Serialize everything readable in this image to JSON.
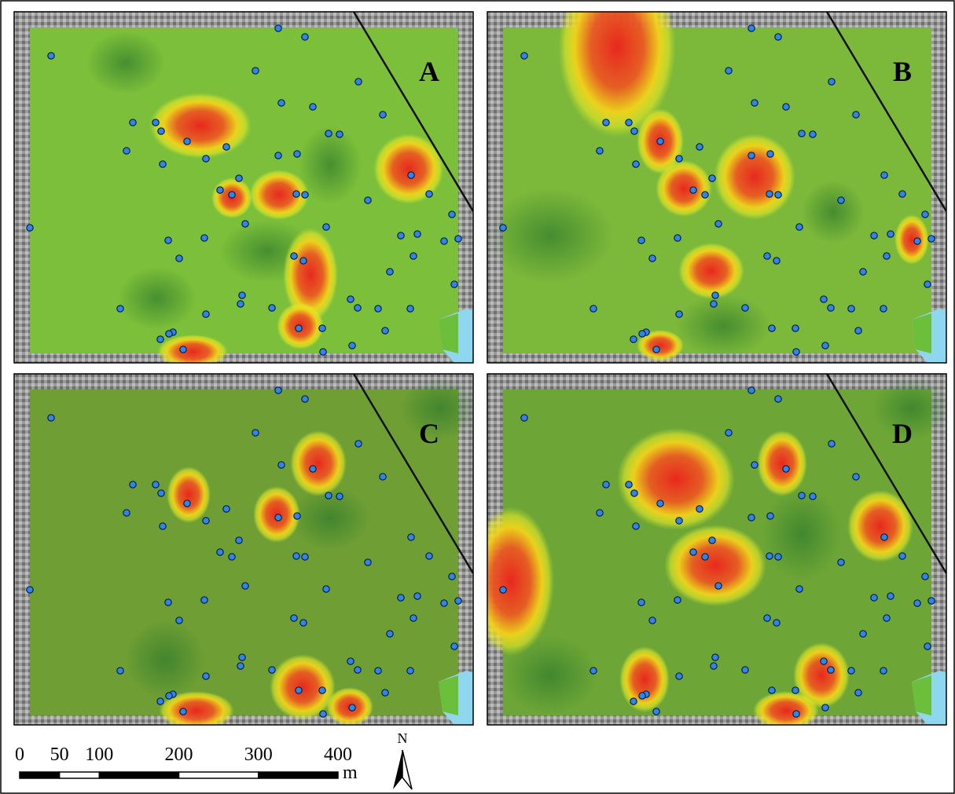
{
  "panels": [
    {
      "label": "A"
    },
    {
      "label": "B"
    },
    {
      "label": "C"
    },
    {
      "label": "D"
    }
  ],
  "scale_bar": {
    "ticks": [
      0,
      50,
      100,
      200,
      300,
      400
    ],
    "unit": "m"
  },
  "north_arrow": {
    "label": "N"
  }
}
